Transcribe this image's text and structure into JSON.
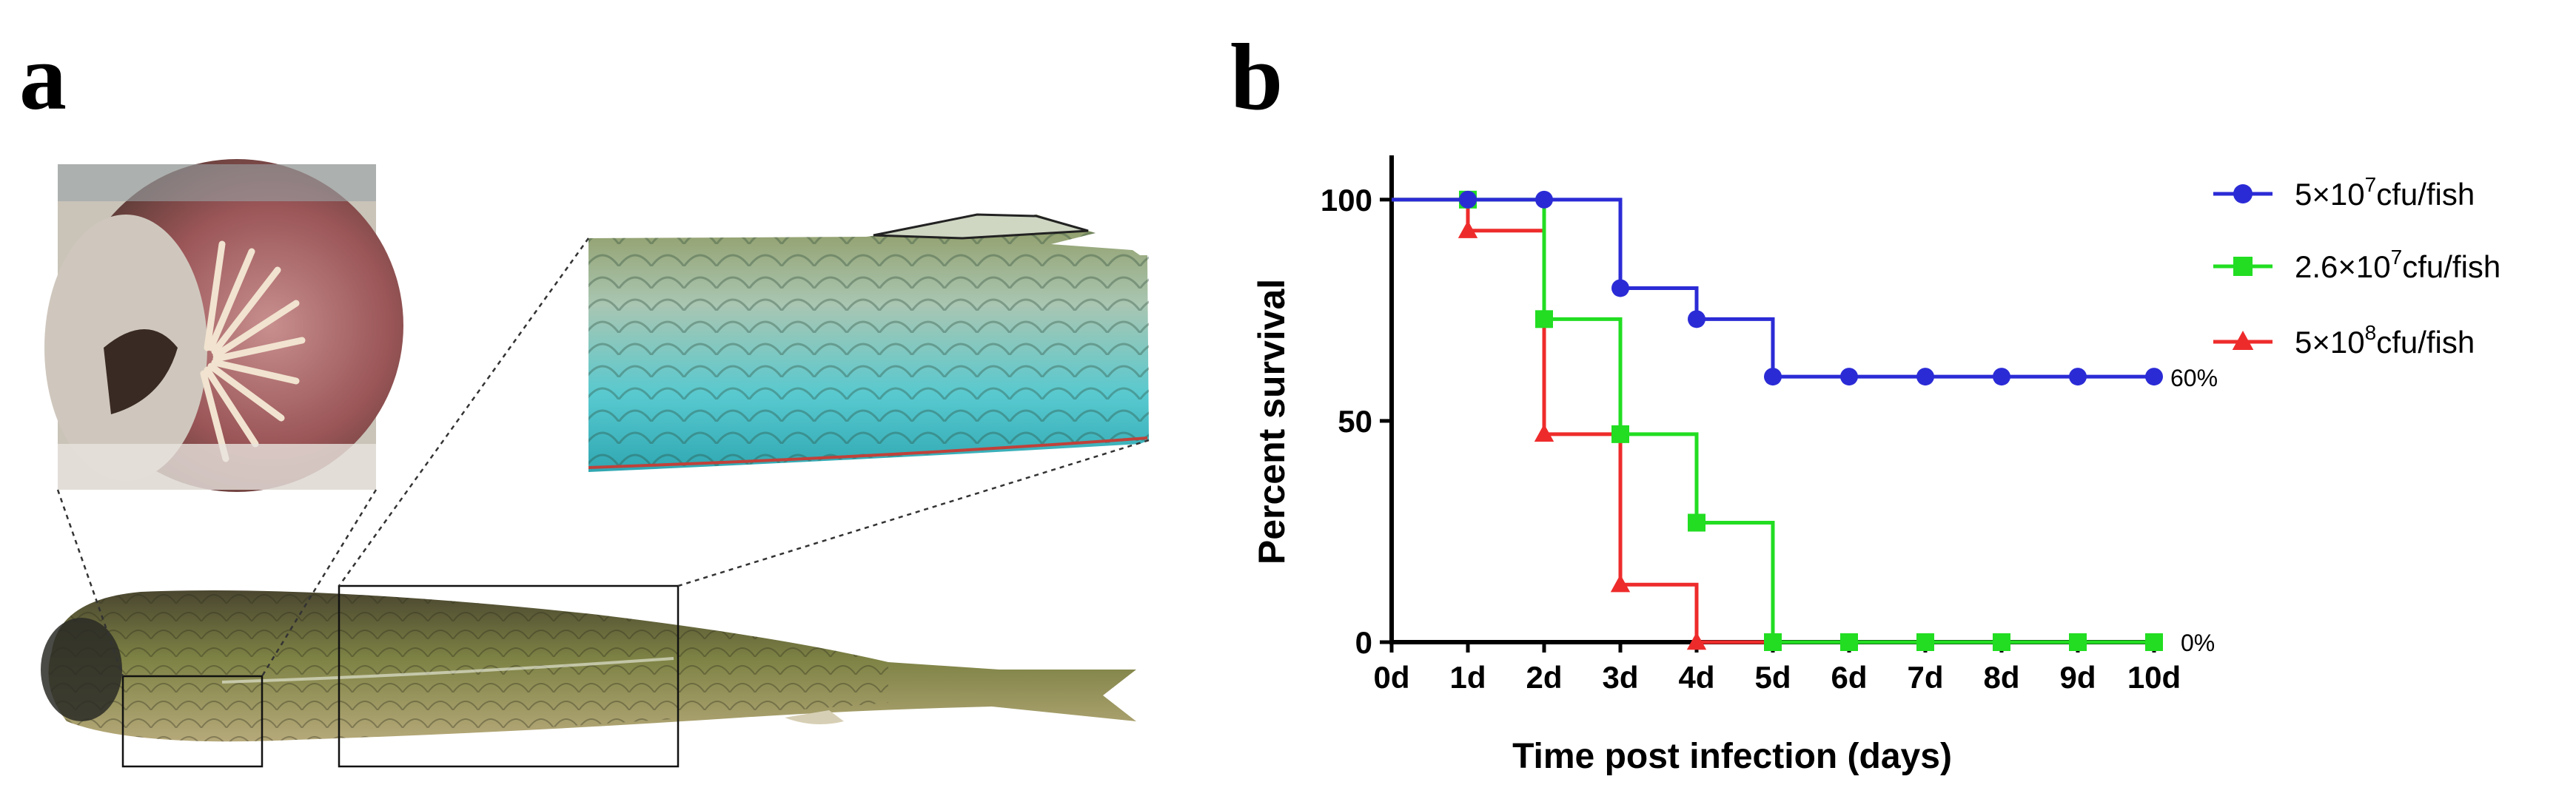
{
  "panels": {
    "a_label": "a",
    "b_label": "b"
  },
  "photos": {
    "gill_photo": "gill-lesion-photo",
    "skin_photo": "skin-lesion-photo",
    "fish_photo": "whole-fish-photo"
  },
  "colors": {
    "blue": "#2b2bd6",
    "green": "#22dd22",
    "red": "#ee2b2b",
    "axis": "#000000"
  },
  "chart_data": {
    "type": "line",
    "title": "",
    "xlabel": "Time post infection (days)",
    "ylabel": "Percent survival",
    "categories": [
      "0d",
      "1d",
      "2d",
      "3d",
      "4d",
      "5d",
      "6d",
      "7d",
      "8d",
      "9d",
      "10d"
    ],
    "x": [
      0,
      1,
      2,
      3,
      4,
      5,
      6,
      7,
      8,
      9,
      10
    ],
    "xlim": [
      0,
      10
    ],
    "ylim": [
      0,
      110
    ],
    "yticks": [
      0,
      50,
      100
    ],
    "legend_position": "top-right",
    "end_labels": {
      "top": "60%",
      "bottom": "0%"
    },
    "series": [
      {
        "name": "5×10⁷cfu/fish",
        "name_base": "5×10",
        "name_exp": "7",
        "name_unit": "cfu/fish",
        "marker": "circle",
        "color": "#2b2bd6",
        "marker_x": [
          1,
          2,
          3,
          4,
          5,
          6,
          7,
          8,
          9,
          10
        ],
        "values": [
          100,
          100,
          100,
          80,
          73,
          60,
          60,
          60,
          60,
          60,
          60
        ]
      },
      {
        "name": "2.6×10⁷cfu/fish",
        "name_base": "2.6×10",
        "name_exp": "7",
        "name_unit": "cfu/fish",
        "marker": "square",
        "color": "#22dd22",
        "marker_x": [
          1,
          2,
          3,
          4,
          5,
          6,
          7,
          8,
          9,
          10
        ],
        "values": [
          100,
          100,
          73,
          47,
          27,
          0,
          0,
          0,
          0,
          0,
          0
        ]
      },
      {
        "name": "5×10⁸cfu/fish",
        "name_base": "5×10",
        "name_exp": "8",
        "name_unit": "cfu/fish",
        "marker": "triangle",
        "color": "#ee2b2b",
        "marker_x": [
          1,
          2,
          3,
          4
        ],
        "values": [
          100,
          93,
          47,
          13,
          0,
          0,
          0,
          0,
          0,
          0,
          0
        ]
      }
    ]
  }
}
